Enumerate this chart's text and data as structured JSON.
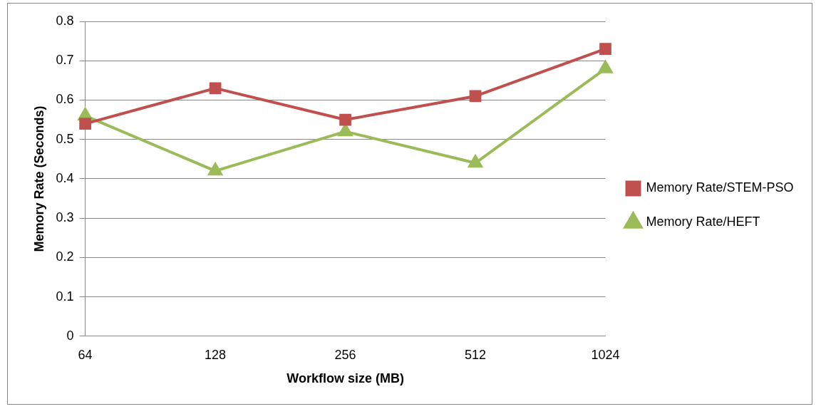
{
  "chart_data": {
    "type": "line",
    "xlabel": "Workflow size (MB)",
    "ylabel": "Memory Rate (Seconds)",
    "categories": [
      "64",
      "128",
      "256",
      "512",
      "1024"
    ],
    "series": [
      {
        "name": "Memory Rate/STEM-PSO",
        "color": "#c0504d",
        "marker": "square",
        "values": [
          0.54,
          0.63,
          0.55,
          0.61,
          0.73
        ]
      },
      {
        "name": "Memory Rate/HEFT",
        "color": "#9bbb59",
        "marker": "triangle",
        "values": [
          0.56,
          0.42,
          0.52,
          0.44,
          0.68
        ]
      }
    ],
    "ylim": [
      0,
      0.8
    ],
    "yticks": [
      0,
      0.1,
      0.2,
      0.3,
      0.4,
      0.5,
      0.6,
      0.7,
      0.8
    ],
    "grid": "y",
    "legend": "right",
    "line_style": "solid"
  }
}
